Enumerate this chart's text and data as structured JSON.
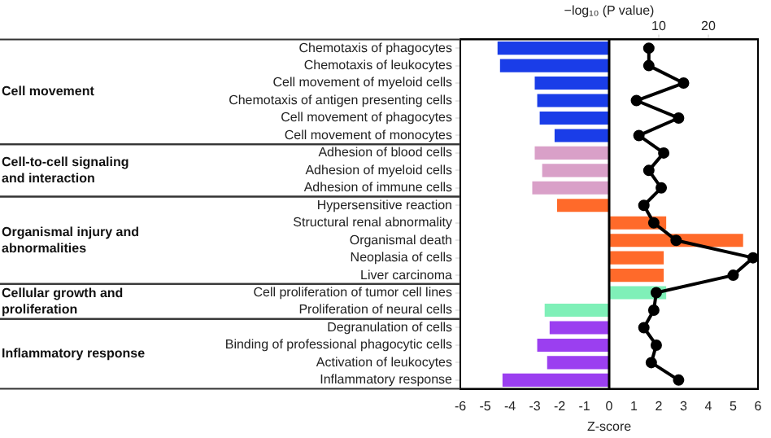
{
  "chart_data": {
    "type": "bar",
    "orientation": "horizontal",
    "xlabel": "Z-score",
    "x2label": "−log₁₀ (P value)",
    "categories": [
      "Chemotaxis of phagocytes",
      "Chemotaxis of leukocytes",
      "Cell movement of myeloid cells",
      "Chemotaxis of antigen presenting cells",
      "Cell movement of phagocytes",
      "Cell movement of monocytes",
      "Adhesion of blood cells",
      "Adhesion of myeloid cells",
      "Adhesion of immune cells",
      "Hypersensitive reaction",
      "Structural renal abnormality",
      "Organismal death",
      "Neoplasia of cells",
      "Liver carcinoma",
      "Cell proliferation of tumor cell lines",
      "Proliferation of neural cells",
      "Degranulation of cells",
      "Binding of professional phagocytic cells",
      "Activation of leukocytes",
      "Inflammatory response"
    ],
    "series": [
      {
        "colors": [
          "#1a3de8",
          "#1a3de8",
          "#1a3de8",
          "#1a3de8",
          "#1a3de8",
          "#1a3de8",
          "#d9a0c8",
          "#d9a0c8",
          "#d9a0c8",
          "#ff6a2a",
          "#ff6a2a",
          "#ff6a2a",
          "#ff6a2a",
          "#ff6a2a",
          "#7ff0b8",
          "#7ff0b8",
          "#9b3ff0",
          "#9b3ff0",
          "#9b3ff0",
          "#9b3ff0"
        ],
        "values": [
          -4.5,
          -4.4,
          -3.0,
          -2.9,
          -2.8,
          -2.2,
          -3.0,
          -2.7,
          -3.1,
          -2.1,
          2.3,
          5.4,
          2.2,
          2.2,
          2.3,
          -2.6,
          -2.4,
          -2.9,
          -2.5,
          -4.3
        ]
      },
      {
        "type": "line",
        "axis": "x2",
        "color": "#000000",
        "marker": "circle",
        "values": [
          8,
          8,
          15,
          5.5,
          14,
          6,
          11,
          8,
          10.5,
          7,
          9,
          13.5,
          29,
          25,
          9.5,
          9,
          7,
          9.5,
          8.5,
          14
        ]
      }
    ],
    "xlim": [
      -6,
      6
    ],
    "xticks": [
      -6,
      -5,
      -4,
      -3,
      -2,
      -1,
      0,
      1,
      2,
      3,
      4,
      5,
      6
    ],
    "x2lim": [
      -30,
      30
    ],
    "x2ticks": [
      10,
      20
    ],
    "ref_lines": [
      {
        "axis": "x",
        "value": 0,
        "color": "#000000"
      }
    ],
    "annotations": [
      "Cell movement",
      "Cell-to-cell signaling and interaction",
      "Organismal injury and abnormalities",
      "Cellular growth and proliferation",
      "Inflammatory response"
    ],
    "grid": false,
    "legend": false
  }
}
